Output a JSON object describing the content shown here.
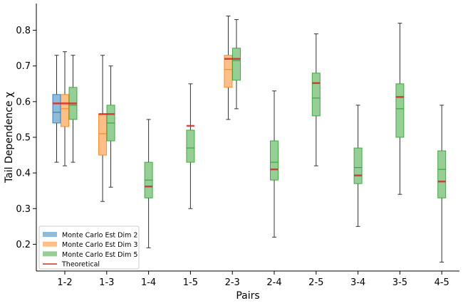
{
  "chart_data": {
    "type": "boxplot",
    "title": "",
    "xlabel": "Pairs",
    "ylabel": "Tail Dependence χ",
    "ylim": [
      0.125,
      0.875
    ],
    "yticks": [
      0.2,
      0.3,
      0.4,
      0.5,
      0.6,
      0.7,
      0.8
    ],
    "ytick_labels": [
      "0.2",
      "0.3",
      "0.4",
      "0.5",
      "0.6",
      "0.7",
      "0.8"
    ],
    "categories": [
      "1-2",
      "1-3",
      "1-4",
      "1-5",
      "2-3",
      "2-4",
      "2-5",
      "3-4",
      "3-5",
      "4-5"
    ],
    "legend": {
      "location": "lower-left",
      "entries": [
        {
          "label": "Monte Carlo Est Dim 2",
          "color": "#1f77b4",
          "kind": "patch"
        },
        {
          "label": "Monte Carlo Est Dim 3",
          "color": "#ff7f0e",
          "kind": "patch"
        },
        {
          "label": "Monte Carlo Est Dim 5",
          "color": "#2ca02c",
          "kind": "patch"
        },
        {
          "label": "Theoretical",
          "color": "#d62728",
          "kind": "line"
        }
      ]
    },
    "series": [
      {
        "name": "Monte Carlo Est Dim 2",
        "fill": "#1f77b4",
        "median_color": "#1f77b4",
        "boxes": [
          {
            "category": "1-2",
            "whislo": 0.43,
            "q1": 0.54,
            "median": 0.57,
            "q3": 0.62,
            "whishi": 0.73
          }
        ]
      },
      {
        "name": "Monte Carlo Est Dim 3",
        "fill": "#ff7f0e",
        "median_color": "#ff7f0e",
        "boxes": [
          {
            "category": "1-2",
            "whislo": 0.42,
            "q1": 0.53,
            "median": 0.58,
            "q3": 0.62,
            "whishi": 0.74
          },
          {
            "category": "1-3",
            "whislo": 0.32,
            "q1": 0.45,
            "median": 0.51,
            "q3": 0.565,
            "whishi": 0.73
          },
          {
            "category": "2-3",
            "whislo": 0.55,
            "q1": 0.64,
            "median": 0.69,
            "q3": 0.73,
            "whishi": 0.84
          }
        ]
      },
      {
        "name": "Monte Carlo Est Dim 5",
        "fill": "#2ca02c",
        "median_color": "#2ca02c",
        "boxes": [
          {
            "category": "1-2",
            "whislo": 0.43,
            "q1": 0.55,
            "median": 0.59,
            "q3": 0.64,
            "whishi": 0.73
          },
          {
            "category": "1-3",
            "whislo": 0.36,
            "q1": 0.49,
            "median": 0.54,
            "q3": 0.59,
            "whishi": 0.7
          },
          {
            "category": "1-4",
            "whislo": 0.19,
            "q1": 0.33,
            "median": 0.38,
            "q3": 0.43,
            "whishi": 0.55
          },
          {
            "category": "1-5",
            "whislo": 0.3,
            "q1": 0.43,
            "median": 0.47,
            "q3": 0.52,
            "whishi": 0.65
          },
          {
            "category": "2-3",
            "whislo": 0.58,
            "q1": 0.66,
            "median": 0.715,
            "q3": 0.75,
            "whishi": 0.83
          },
          {
            "category": "2-4",
            "whislo": 0.22,
            "q1": 0.38,
            "median": 0.43,
            "q3": 0.49,
            "whishi": 0.63
          },
          {
            "category": "2-5",
            "whislo": 0.42,
            "q1": 0.56,
            "median": 0.61,
            "q3": 0.68,
            "whishi": 0.79
          },
          {
            "category": "3-4",
            "whislo": 0.25,
            "q1": 0.37,
            "median": 0.415,
            "q3": 0.47,
            "whishi": 0.59
          },
          {
            "category": "3-5",
            "whislo": 0.34,
            "q1": 0.5,
            "median": 0.58,
            "q3": 0.65,
            "whishi": 0.82
          },
          {
            "category": "4-5",
            "whislo": 0.15,
            "q1": 0.33,
            "median": 0.41,
            "q3": 0.462,
            "whishi": 0.59
          }
        ]
      }
    ],
    "theoretical": {
      "name": "Theoretical",
      "color": "#d62728",
      "values": [
        {
          "category": "1-2",
          "value": 0.595
        },
        {
          "category": "1-3",
          "value": 0.565
        },
        {
          "category": "1-4",
          "value": 0.362
        },
        {
          "category": "1-5",
          "value": 0.532
        },
        {
          "category": "2-3",
          "value": 0.72
        },
        {
          "category": "2-4",
          "value": 0.41
        },
        {
          "category": "2-5",
          "value": 0.652
        },
        {
          "category": "3-4",
          "value": 0.393
        },
        {
          "category": "3-5",
          "value": 0.613
        },
        {
          "category": "4-5",
          "value": 0.376
        }
      ]
    }
  }
}
